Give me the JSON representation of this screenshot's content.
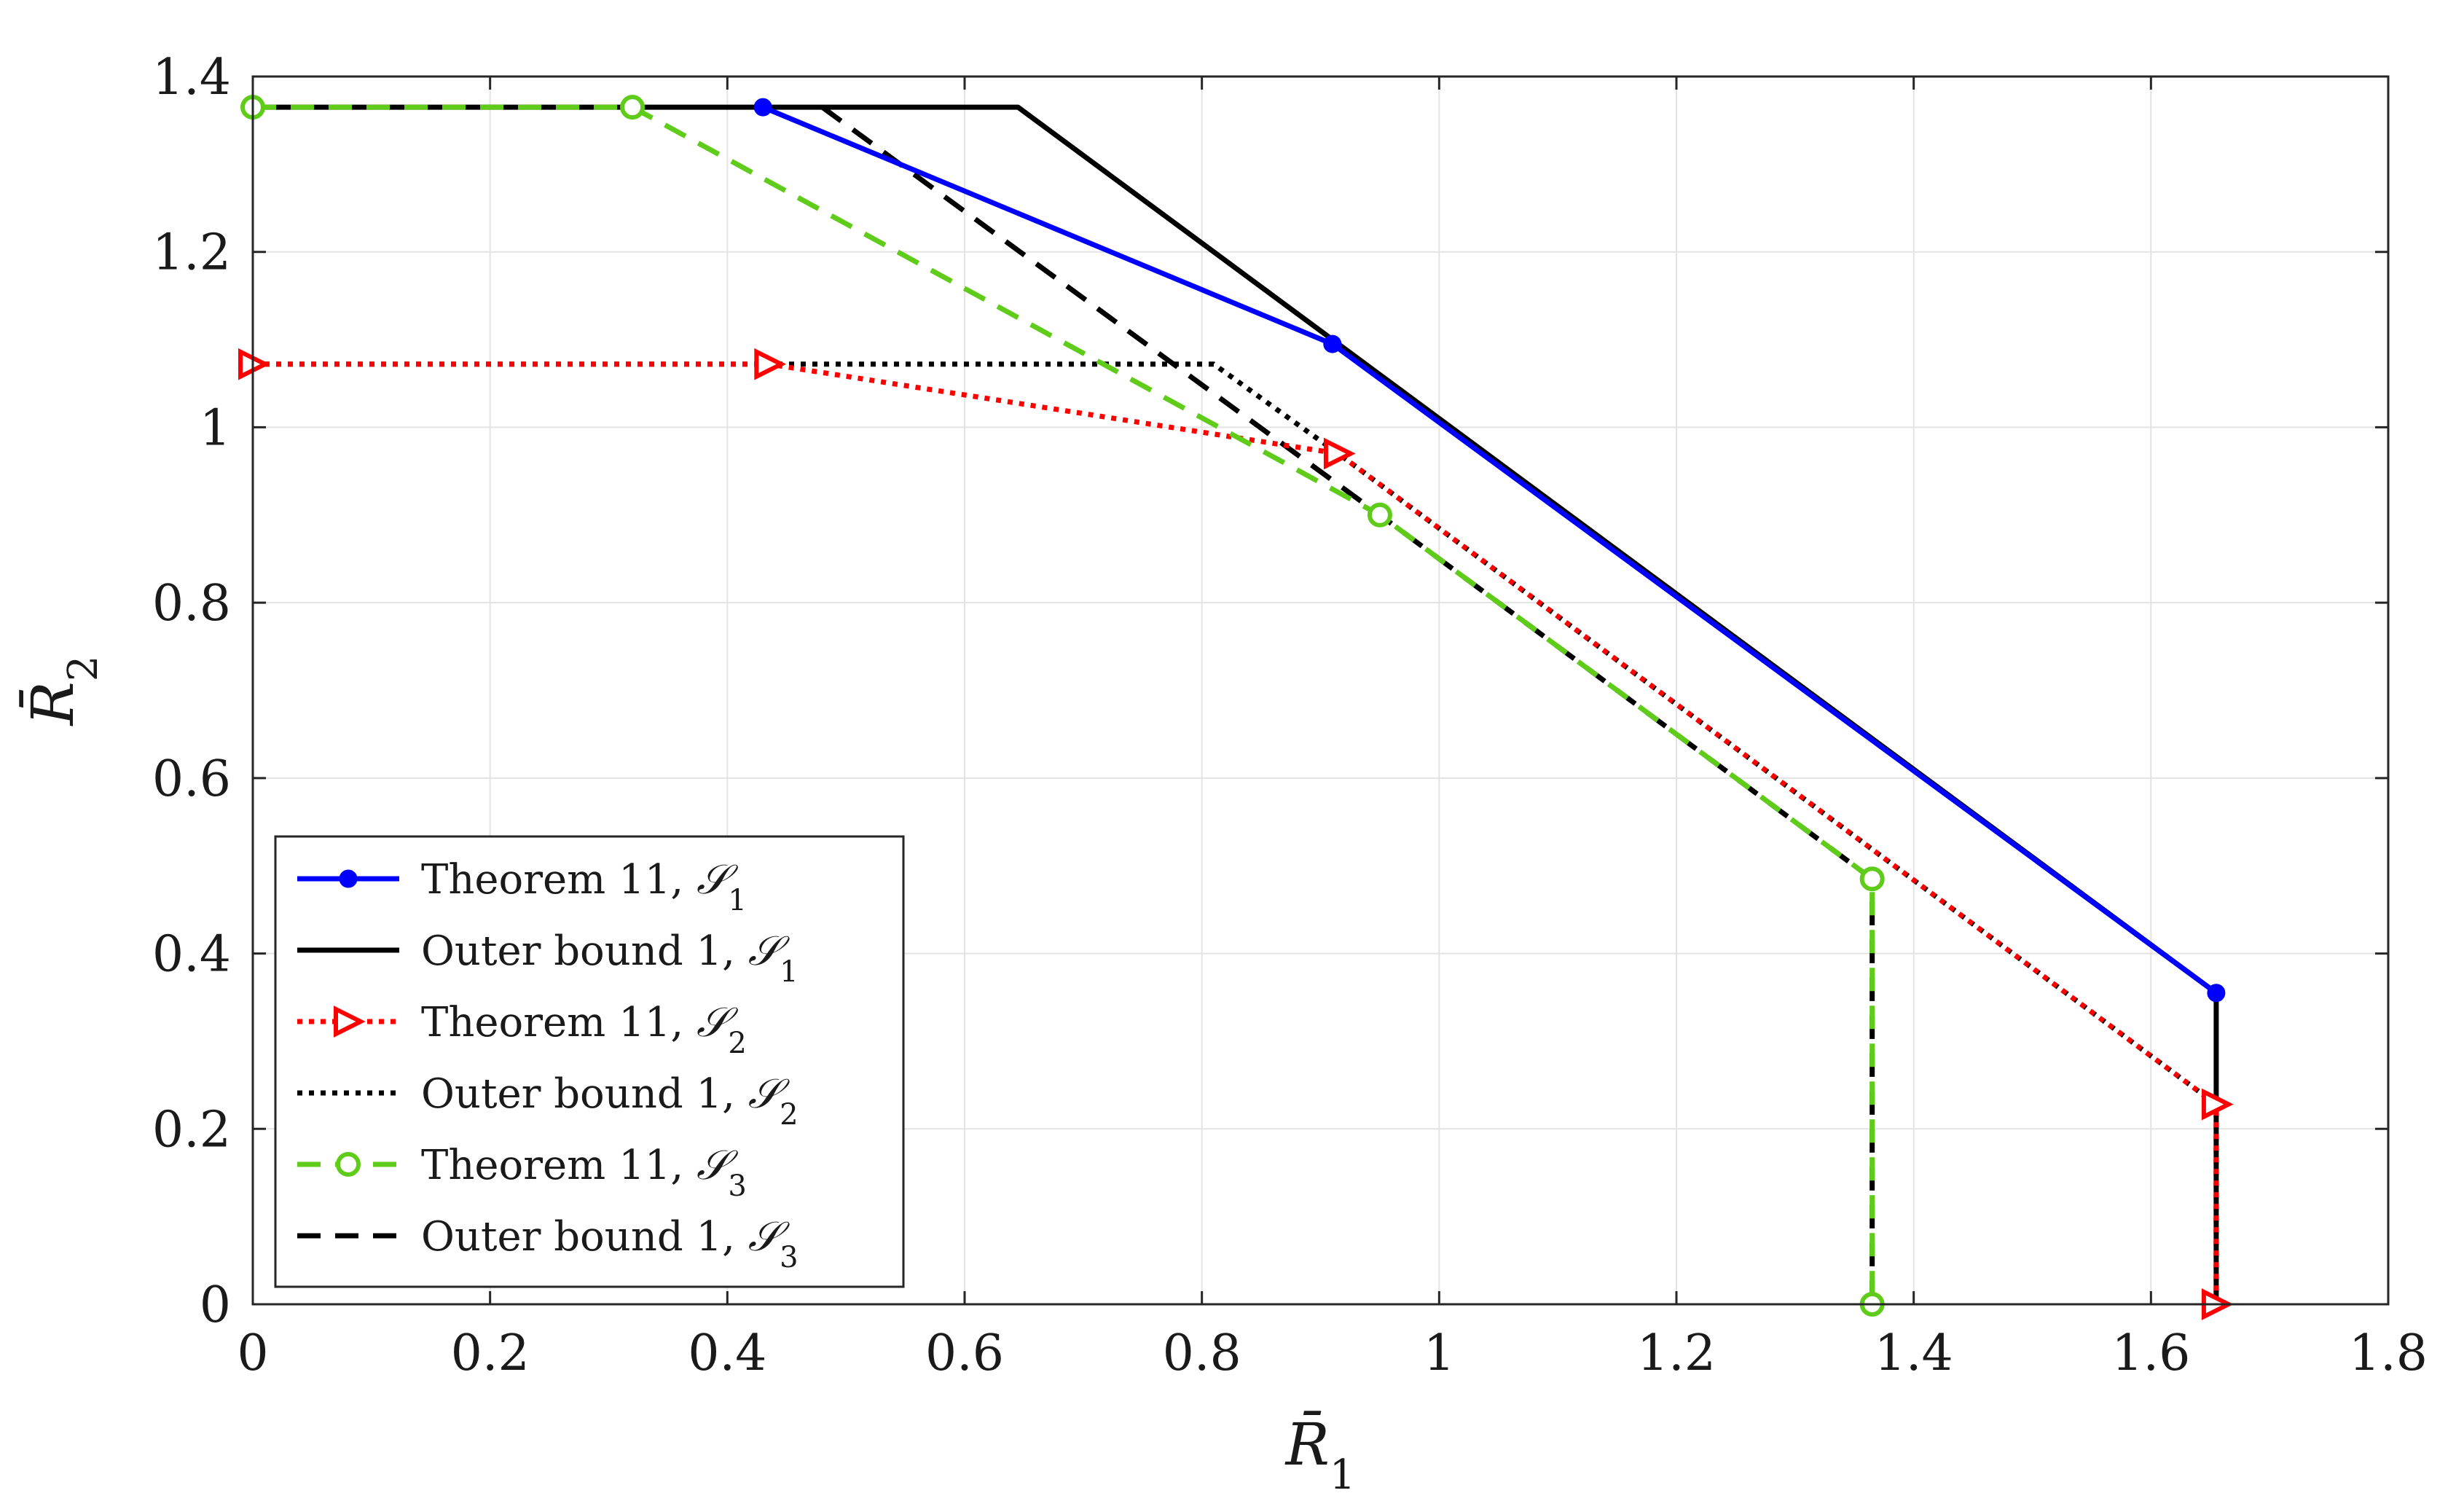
{
  "chart_data": {
    "type": "line",
    "title": "",
    "xlabel": "R̄",
    "xlabel_sub": "1",
    "ylabel": "R̄",
    "ylabel_sub": "2",
    "xlim": [
      0,
      1.8
    ],
    "ylim": [
      0,
      1.4
    ],
    "xticks": [
      0,
      0.2,
      0.4,
      0.6,
      0.8,
      1,
      1.2,
      1.4,
      1.6,
      1.8
    ],
    "yticks": [
      0,
      0.2,
      0.4,
      0.6,
      0.8,
      1,
      1.2,
      1.4
    ],
    "xtick_labels": [
      "0",
      "0.2",
      "0.4",
      "0.6",
      "0.8",
      "1",
      "1.2",
      "1.4",
      "1.6",
      "1.8"
    ],
    "ytick_labels": [
      "0",
      "0.2",
      "0.4",
      "0.6",
      "0.8",
      "1",
      "1.2",
      "1.4"
    ],
    "grid": true,
    "legend_position": "bottom-left",
    "series": [
      {
        "name": "Theorem 11, 𝒮₁",
        "label_text": "Theorem 11, ",
        "label_set": "𝒮",
        "label_sub": "1",
        "color": "#0000ff",
        "style": "solid",
        "marker": "dot",
        "x": [
          0.43,
          0.91,
          1.655
        ],
        "y": [
          1.365,
          1.095,
          0.355
        ]
      },
      {
        "name": "Outer bound 1, 𝒮₁",
        "label_text": "Outer bound 1, ",
        "label_set": "𝒮",
        "label_sub": "1",
        "color": "#000000",
        "style": "solid",
        "marker": "none",
        "x": [
          0,
          0.645,
          1.655,
          1.655
        ],
        "y": [
          1.365,
          1.365,
          0.355,
          0
        ]
      },
      {
        "name": "Theorem 11, 𝒮₂",
        "label_text": "Theorem 11, ",
        "label_set": "𝒮",
        "label_sub": "2",
        "color": "#ff0000",
        "style": "dotted",
        "marker": "triangle-right",
        "x": [
          0,
          0.435,
          0.915,
          1.655,
          1.655
        ],
        "y": [
          1.072,
          1.072,
          0.97,
          0.228,
          0
        ]
      },
      {
        "name": "Outer bound 1, 𝒮₂",
        "label_text": "Outer bound 1, ",
        "label_set": "𝒮",
        "label_sub": "2",
        "color": "#000000",
        "style": "dotted",
        "marker": "none",
        "x": [
          0,
          0.81,
          0.915,
          1.655,
          1.655
        ],
        "y": [
          1.072,
          1.072,
          0.97,
          0.228,
          0
        ]
      },
      {
        "name": "Theorem 11, 𝒮₃",
        "label_text": "Theorem 11, ",
        "label_set": "𝒮",
        "label_sub": "3",
        "color": "#5fcc1a",
        "style": "dashed",
        "marker": "circle",
        "x": [
          0,
          0.32,
          0.95,
          1.365,
          1.365
        ],
        "y": [
          1.365,
          1.365,
          0.9,
          0.485,
          0
        ]
      },
      {
        "name": "Outer bound 1, 𝒮₃",
        "label_text": "Outer bound 1, ",
        "label_set": "𝒮",
        "label_sub": "3",
        "color": "#000000",
        "style": "dashed",
        "marker": "none",
        "x": [
          0.48,
          0.95,
          1.365,
          1.365
        ],
        "y": [
          1.365,
          0.9,
          0.485,
          0
        ]
      }
    ]
  }
}
